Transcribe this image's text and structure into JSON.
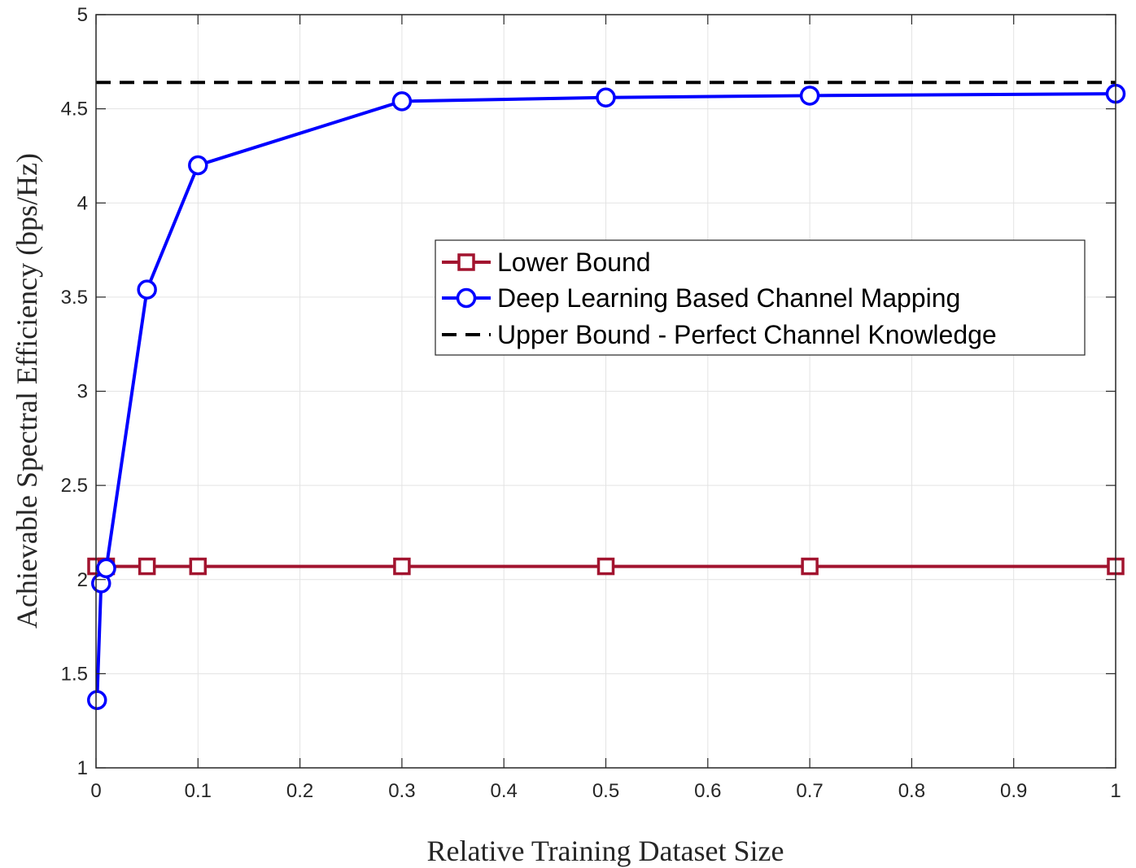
{
  "chart_data": {
    "type": "line",
    "title": "",
    "xlabel": "Relative Training Dataset Size",
    "ylabel": "Achievable Spectral Efficiency (bps/Hz)",
    "xlim": [
      0,
      1
    ],
    "ylim": [
      1,
      5
    ],
    "xticks": [
      0,
      0.1,
      0.2,
      0.3,
      0.4,
      0.5,
      0.6,
      0.7,
      0.8,
      0.9,
      1
    ],
    "xtick_labels": [
      "0",
      "0.1",
      "0.2",
      "0.3",
      "0.4",
      "0.5",
      "0.6",
      "0.7",
      "0.8",
      "0.9",
      "1"
    ],
    "yticks": [
      1,
      1.5,
      2,
      2.5,
      3,
      3.5,
      4,
      4.5,
      5
    ],
    "ytick_labels": [
      "1",
      "1.5",
      "2",
      "2.5",
      "3",
      "3.5",
      "4",
      "4.5",
      "5"
    ],
    "grid": true,
    "legend_position": "center-right",
    "series": [
      {
        "name": "Lower Bound",
        "color": "#A2142F",
        "marker": "square",
        "line_style": "solid",
        "x": [
          0,
          0.01,
          0.05,
          0.1,
          0.3,
          0.5,
          0.7,
          1
        ],
        "y": [
          2.07,
          2.07,
          2.07,
          2.07,
          2.07,
          2.07,
          2.07,
          2.07
        ]
      },
      {
        "name": "Deep Learning Based Channel Mapping",
        "color": "#0000FF",
        "marker": "circle",
        "line_style": "solid",
        "x": [
          0.001,
          0.005,
          0.01,
          0.05,
          0.1,
          0.3,
          0.5,
          0.7,
          1
        ],
        "y": [
          1.36,
          1.98,
          2.06,
          3.54,
          4.2,
          4.54,
          4.56,
          4.57,
          4.58
        ]
      },
      {
        "name": "Upper Bound - Perfect Channel Knowledge",
        "color": "#000000",
        "marker": "none",
        "line_style": "dashed",
        "x": [
          0,
          1
        ],
        "y": [
          4.64,
          4.64
        ]
      }
    ]
  }
}
